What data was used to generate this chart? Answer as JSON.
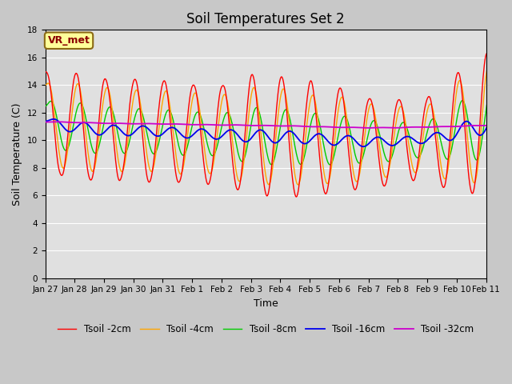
{
  "title": "Soil Temperatures Set 2",
  "xlabel": "Time",
  "ylabel": "Soil Temperature (C)",
  "ylim": [
    0,
    18
  ],
  "yticks": [
    0,
    2,
    4,
    6,
    8,
    10,
    12,
    14,
    16,
    18
  ],
  "fig_facecolor": "#c8c8c8",
  "plot_facecolor": "#e0e0e0",
  "annotation_text": "VR_met",
  "annotation_color": "#8B0000",
  "annotation_bg": "#FFFF99",
  "annotation_edge": "#8B6914",
  "series_colors": {
    "Tsoil -2cm": "#FF0000",
    "Tsoil -4cm": "#FFA500",
    "Tsoil -8cm": "#00CC00",
    "Tsoil -16cm": "#0000EE",
    "Tsoil -32cm": "#CC00CC"
  },
  "day_labels": [
    "Jan 27",
    "Jan 28",
    "Jan 29",
    "Jan 30",
    "Jan 31",
    "Feb 1",
    "Feb 2",
    "Feb 3",
    "Feb 4",
    "Feb 5",
    "Feb 6",
    "Feb 7",
    "Feb 8",
    "Feb 9",
    "Feb 10",
    "Feb 11"
  ],
  "n_days": 16,
  "pts_per_day": 48
}
